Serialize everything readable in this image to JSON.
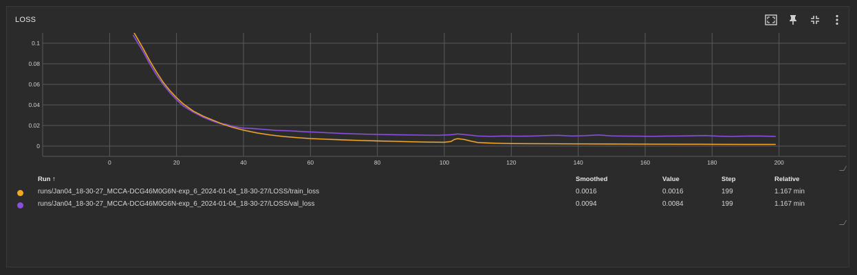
{
  "card": {
    "title": "LOSS"
  },
  "toolbar": {
    "icons": [
      "fit-to-data-icon",
      "pin-icon",
      "collapse-icon",
      "more-vert-icon"
    ]
  },
  "colors": {
    "train": "#f5a623",
    "val": "#8a4fe0",
    "train_smoothed_shadow": "#7a6a55",
    "val_smoothed_shadow": "#5a4a7a",
    "grid": "#5a5a5a",
    "background": "#2b2b2b"
  },
  "chart_data": {
    "type": "line",
    "title": "LOSS",
    "xlabel": "",
    "ylabel": "",
    "xlim": [
      -20,
      220
    ],
    "ylim": [
      -0.01,
      0.11
    ],
    "xticks": [
      0,
      20,
      40,
      60,
      80,
      100,
      120,
      140,
      160,
      180,
      200
    ],
    "yticks": [
      0,
      0.02,
      0.04,
      0.06,
      0.08,
      0.1
    ],
    "ytick_labels": [
      "0",
      "0.02",
      "0.04",
      "0.06",
      "0.08",
      "0.1"
    ],
    "grid": true,
    "series": [
      {
        "name": "runs/Jan04_18-30-27_MCCA-DCG46M0G6N-exp_6_2024-01-04_18-30-27/LOSS/train_loss",
        "color": "#f5a623",
        "x": [
          7,
          10,
          12,
          14,
          16,
          18,
          20,
          22,
          25,
          28,
          31,
          34,
          37,
          40,
          44,
          48,
          52,
          56,
          60,
          65,
          70,
          75,
          80,
          85,
          90,
          95,
          100,
          102,
          103,
          104,
          106,
          108,
          110,
          113,
          116,
          120,
          130,
          140,
          150,
          160,
          170,
          180,
          190,
          199
        ],
        "y": [
          0.112,
          0.095,
          0.083,
          0.072,
          0.062,
          0.054,
          0.047,
          0.041,
          0.034,
          0.029,
          0.025,
          0.021,
          0.018,
          0.0155,
          0.0128,
          0.0108,
          0.0093,
          0.0082,
          0.0073,
          0.0066,
          0.006,
          0.0055,
          0.005,
          0.0046,
          0.0042,
          0.0039,
          0.0037,
          0.0045,
          0.0065,
          0.0072,
          0.0064,
          0.0048,
          0.0035,
          0.003,
          0.0027,
          0.0025,
          0.0023,
          0.0021,
          0.002,
          0.0019,
          0.0018,
          0.0017,
          0.0016,
          0.0016
        ]
      },
      {
        "name": "runs/Jan04_18-30-27_MCCA-DCG46M0G6N-exp_6_2024-01-04_18-30-27/LOSS/val_loss",
        "color": "#8a4fe0",
        "x": [
          7,
          10,
          12,
          14,
          16,
          18,
          20,
          22,
          25,
          28,
          31,
          33,
          35,
          37,
          40,
          43,
          46,
          50,
          54,
          58,
          62,
          66,
          70,
          74,
          78,
          82,
          86,
          90,
          94,
          98,
          102,
          104,
          106,
          110,
          114,
          118,
          122,
          126,
          130,
          134,
          138,
          142,
          146,
          150,
          154,
          158,
          162,
          166,
          170,
          174,
          178,
          182,
          186,
          190,
          194,
          199
        ],
        "y": [
          0.108,
          0.092,
          0.08,
          0.069,
          0.06,
          0.052,
          0.045,
          0.039,
          0.033,
          0.028,
          0.024,
          0.022,
          0.021,
          0.019,
          0.0175,
          0.017,
          0.0162,
          0.0152,
          0.0148,
          0.014,
          0.0135,
          0.0128,
          0.0122,
          0.0118,
          0.0115,
          0.0112,
          0.011,
          0.0108,
          0.0106,
          0.0105,
          0.011,
          0.0118,
          0.0112,
          0.0098,
          0.0095,
          0.0098,
          0.0096,
          0.0097,
          0.0102,
          0.0105,
          0.0098,
          0.0101,
          0.0108,
          0.0099,
          0.0097,
          0.0096,
          0.0095,
          0.0097,
          0.0098,
          0.01,
          0.0102,
          0.0096,
          0.0094,
          0.0097,
          0.0098,
          0.0094
        ]
      }
    ]
  },
  "legend": {
    "headers": {
      "run": "Run ↑",
      "smoothed": "Smoothed",
      "value": "Value",
      "step": "Step",
      "relative": "Relative"
    },
    "rows": [
      {
        "color": "#f5a623",
        "run": "runs/Jan04_18-30-27_MCCA-DCG46M0G6N-exp_6_2024-01-04_18-30-27/LOSS/train_loss",
        "smoothed": "0.0016",
        "value": "0.0016",
        "step": "199",
        "relative": "1.167 min"
      },
      {
        "color": "#8a4fe0",
        "run": "runs/Jan04_18-30-27_MCCA-DCG46M0G6N-exp_6_2024-01-04_18-30-27/LOSS/val_loss",
        "smoothed": "0.0094",
        "value": "0.0084",
        "step": "199",
        "relative": "1.167 min"
      }
    ]
  }
}
